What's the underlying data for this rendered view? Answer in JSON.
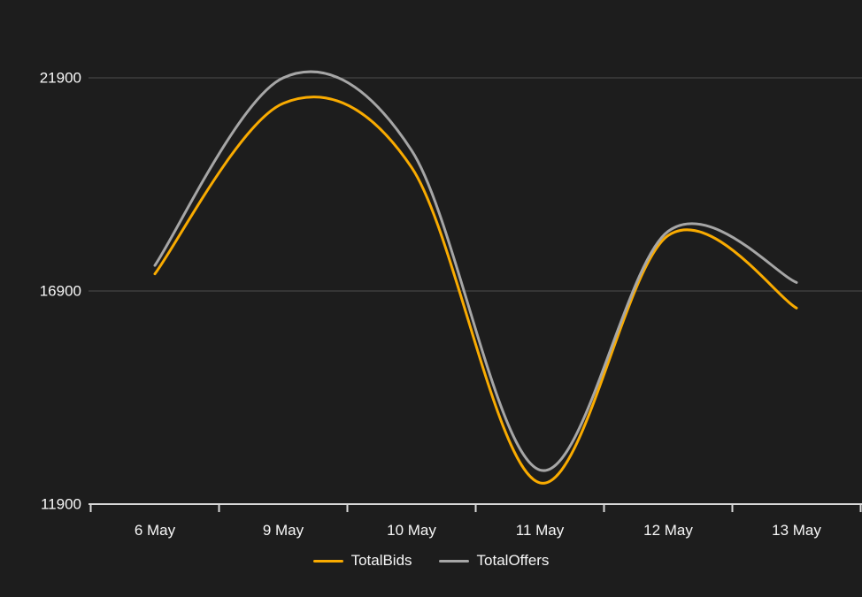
{
  "chart_data": {
    "type": "line",
    "title": "",
    "xlabel": "",
    "ylabel": "",
    "categories": [
      "6 May",
      "9 May",
      "10 May",
      "11 May",
      "12 May",
      "13 May"
    ],
    "series": [
      {
        "name": "TotalBids",
        "color": "#f9ab00",
        "values": [
          17300,
          21300,
          19800,
          12400,
          18200,
          16500
        ]
      },
      {
        "name": "TotalOffers",
        "color": "#a6a6a6",
        "values": [
          17500,
          21900,
          20200,
          12700,
          18300,
          17100
        ]
      }
    ],
    "yticks": [
      11900,
      16900,
      21900
    ],
    "ylim": [
      11900,
      21900
    ],
    "grid": "horizontal",
    "legend_position": "bottom",
    "curve": "smooth"
  },
  "colors": {
    "background": "#1d1d1d",
    "gridline": "#4d4d4d",
    "axis": "#d9d9d9",
    "text": "#f7f7f7"
  }
}
